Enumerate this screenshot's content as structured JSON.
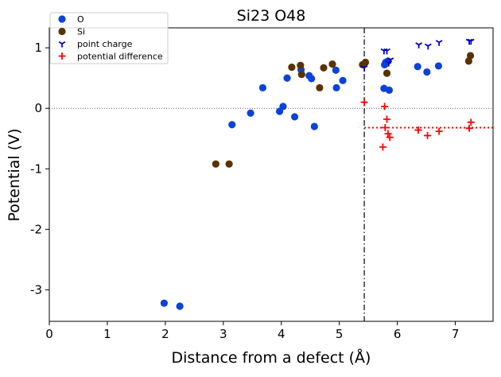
{
  "chart_data": {
    "type": "scatter",
    "title": "Si23 O48",
    "xlabel": "Distance from a defect (Å)",
    "ylabel": "Potential (V)",
    "xlim": [
      0,
      7.65
    ],
    "ylim": [
      -3.52,
      1.33
    ],
    "x_ticks": [
      0,
      1,
      2,
      3,
      4,
      5,
      6,
      7
    ],
    "y_ticks": [
      1,
      0,
      -1,
      -2,
      -3
    ],
    "x_tick_labels": [
      "0",
      "1",
      "2",
      "3",
      "4",
      "5",
      "6",
      "7"
    ],
    "y_tick_labels": [
      "1",
      "0",
      "-1",
      "-2",
      "-3"
    ],
    "legend_position": "top-left",
    "reference_lines": [
      {
        "orientation": "horizontal",
        "value": 0,
        "style": "dotted",
        "color": "#000000"
      },
      {
        "orientation": "vertical",
        "value": 5.43,
        "style": "dashdot",
        "color": "#000000"
      },
      {
        "orientation": "horizontal",
        "value": -0.32,
        "from_x": 5.43,
        "style": "dotted",
        "color": "#ff0000"
      }
    ],
    "series": [
      {
        "name": "O",
        "marker": "circle",
        "color": "#0b43d6",
        "points": [
          [
            1.98,
            -3.22
          ],
          [
            2.25,
            -3.27
          ],
          [
            3.15,
            -0.27
          ],
          [
            3.47,
            -0.08
          ],
          [
            3.68,
            0.34
          ],
          [
            3.97,
            -0.05
          ],
          [
            4.03,
            0.03
          ],
          [
            4.1,
            0.5
          ],
          [
            4.23,
            -0.14
          ],
          [
            4.34,
            0.64
          ],
          [
            4.48,
            0.54
          ],
          [
            4.52,
            0.49
          ],
          [
            4.57,
            -0.3
          ],
          [
            4.94,
            0.63
          ],
          [
            4.95,
            0.34
          ],
          [
            5.06,
            0.46
          ],
          [
            5.77,
            0.33
          ],
          [
            5.78,
            0.72
          ],
          [
            5.8,
            0.76
          ],
          [
            5.84,
            0.78
          ],
          [
            5.86,
            0.3
          ],
          [
            6.35,
            0.69
          ],
          [
            6.51,
            0.6
          ],
          [
            6.71,
            0.7
          ]
        ]
      },
      {
        "name": "Si",
        "marker": "circle",
        "color": "#5a3200",
        "points": [
          [
            2.87,
            -0.92
          ],
          [
            3.1,
            -0.92
          ],
          [
            4.18,
            0.68
          ],
          [
            4.33,
            0.71
          ],
          [
            4.35,
            0.56
          ],
          [
            4.66,
            0.34
          ],
          [
            4.73,
            0.67
          ],
          [
            4.88,
            0.73
          ],
          [
            5.4,
            0.72
          ],
          [
            5.45,
            0.76
          ],
          [
            5.82,
            0.58
          ],
          [
            7.23,
            0.78
          ],
          [
            7.26,
            0.87
          ]
        ]
      },
      {
        "name": "point charge",
        "marker": "tri_down",
        "color": "#0000cc",
        "points": [
          [
            5.43,
            0.67
          ],
          [
            5.77,
            0.95
          ],
          [
            5.82,
            0.95
          ],
          [
            5.85,
            0.75
          ],
          [
            5.88,
            0.8
          ],
          [
            6.37,
            1.05
          ],
          [
            6.53,
            1.03
          ],
          [
            6.72,
            1.09
          ],
          [
            7.24,
            1.11
          ],
          [
            7.27,
            1.11
          ]
        ]
      },
      {
        "name": "potential difference",
        "marker": "plus",
        "color": "#ff0000",
        "points": [
          [
            5.43,
            0.1
          ],
          [
            5.75,
            -0.64
          ],
          [
            5.78,
            0.03
          ],
          [
            5.79,
            -0.32
          ],
          [
            5.82,
            -0.18
          ],
          [
            5.84,
            -0.42
          ],
          [
            5.87,
            -0.48
          ],
          [
            6.36,
            -0.36
          ],
          [
            6.52,
            -0.45
          ],
          [
            6.72,
            -0.38
          ],
          [
            7.24,
            -0.33
          ],
          [
            7.27,
            -0.23
          ]
        ]
      }
    ]
  }
}
